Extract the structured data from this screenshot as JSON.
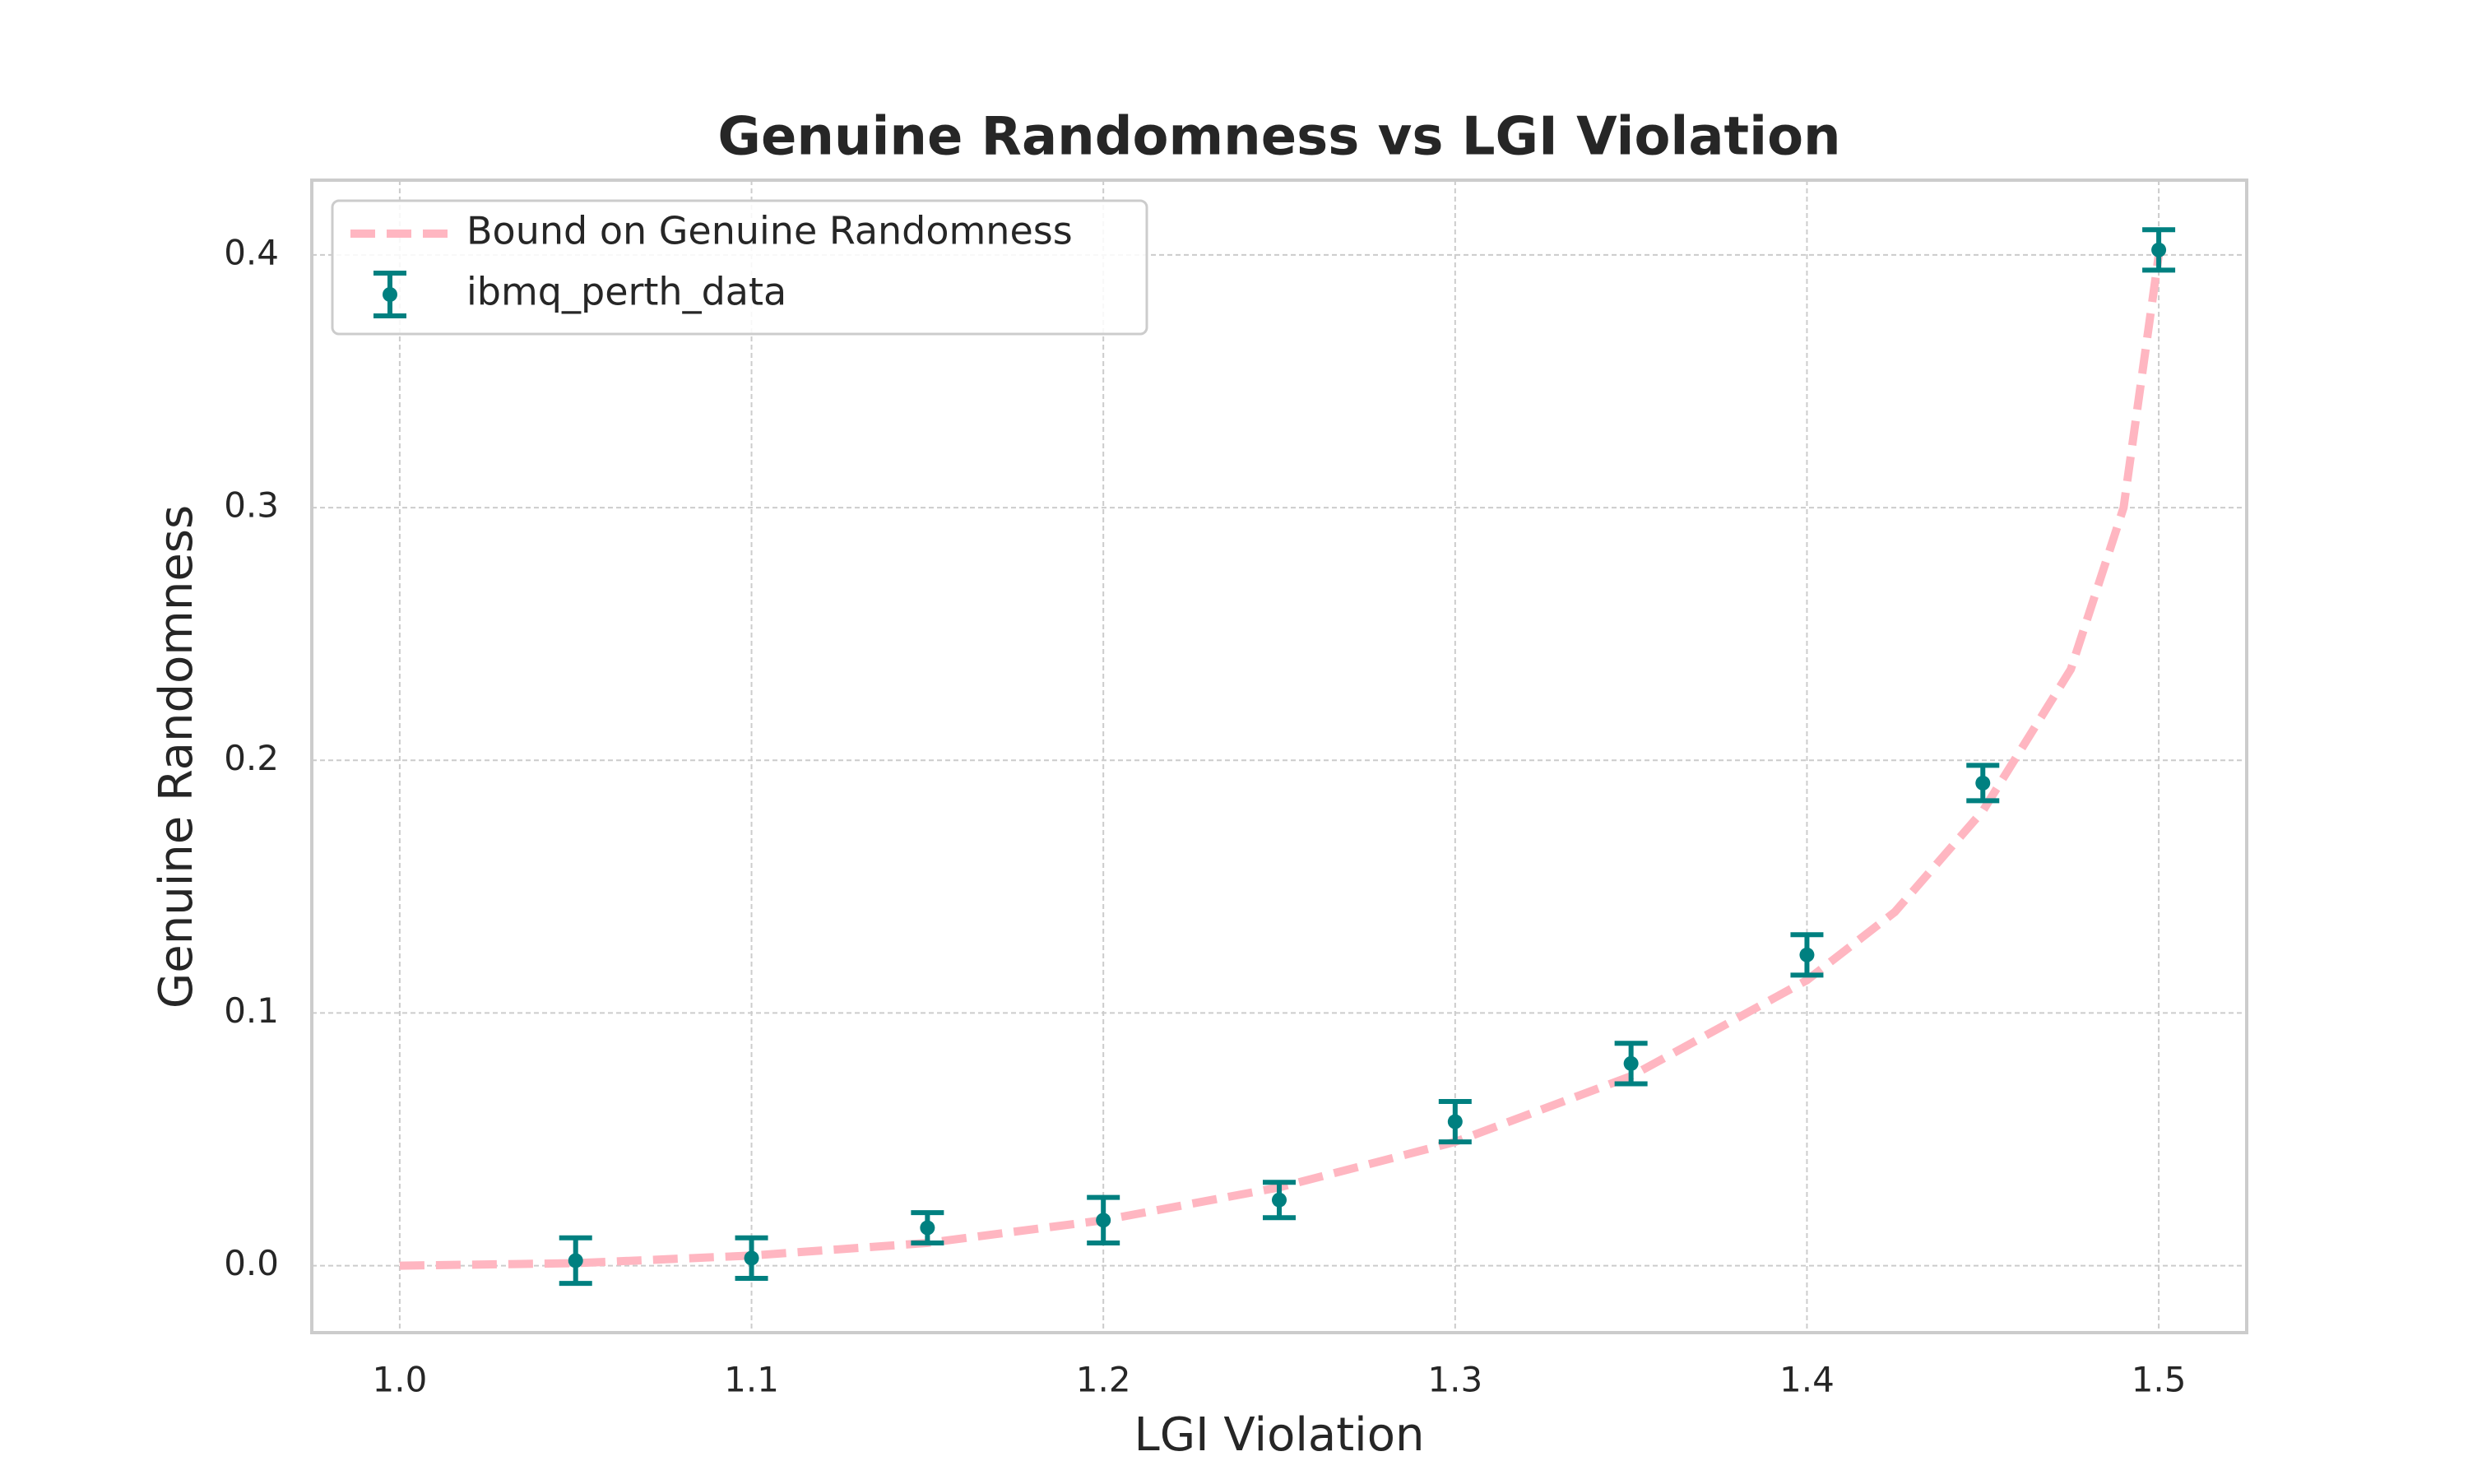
{
  "chart_data": {
    "type": "errorbar",
    "title": "Genuine Randomness vs LGI Violation",
    "x_label": "LGI Violation",
    "y_label": "Genuine Randomness",
    "xlim": [
      0.975,
      1.525
    ],
    "ylim": [
      -0.0265,
      0.4296
    ],
    "xticks": [
      {
        "value": 1.0,
        "label": "1.0"
      },
      1.1,
      1.2,
      1.3,
      1.4,
      1.5
    ],
    "yticks": [
      {
        "value": 0,
        "label": "0.0"
      },
      0.1,
      0.2,
      0.3,
      0.4
    ],
    "grid": true,
    "legend_position": "upper left",
    "series": [
      {
        "name": "Bound on Genuine Randomness",
        "color": "#ffb6c1",
        "style": "dashed",
        "x": [
          1.0,
          1.05,
          1.1,
          1.15,
          1.2,
          1.25,
          1.3,
          1.35,
          1.4,
          1.425,
          1.45,
          1.475,
          1.49,
          1.5
        ],
        "values": [
          0,
          0.001,
          0.004,
          0.009,
          0.018,
          0.031,
          0.049,
          0.075,
          0.113,
          0.14,
          0.18,
          0.236,
          0.3,
          0.4
        ]
      },
      {
        "name": "ibmq_perth_data",
        "color": "#008080",
        "style": "errorbar",
        "x": [
          1.05,
          1.1,
          1.15,
          1.2,
          1.25,
          1.3,
          1.35,
          1.4,
          1.45,
          1.5
        ],
        "values": [
          0.002,
          0.003,
          0.015,
          0.018,
          0.026,
          0.057,
          0.08,
          0.123,
          0.191,
          0.402
        ],
        "errors": [
          0.009,
          0.008,
          0.006,
          0.009,
          0.007,
          0.008,
          0.008,
          0.008,
          0.007,
          0.008
        ]
      }
    ]
  }
}
